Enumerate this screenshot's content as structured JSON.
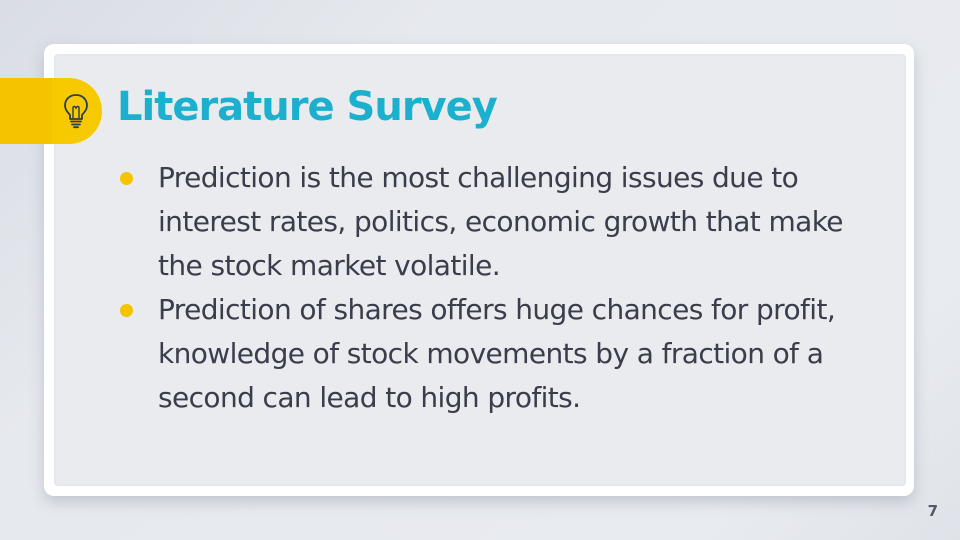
{
  "slide": {
    "title": "Literature Survey",
    "bullets": [
      "Prediction is the most challenging issues due to interest rates, politics, economic growth that make the stock market volatile.",
      "Prediction of shares offers huge chances for profit, knowledge of stock movements by a fraction of a second can lead to high profits."
    ],
    "page_number": "7",
    "icon": "lightbulb-icon"
  },
  "colors": {
    "title": "#1cb0cf",
    "accent": "#f5c400",
    "body_text": "#3a3d4a",
    "background": "#e6e9ee"
  }
}
